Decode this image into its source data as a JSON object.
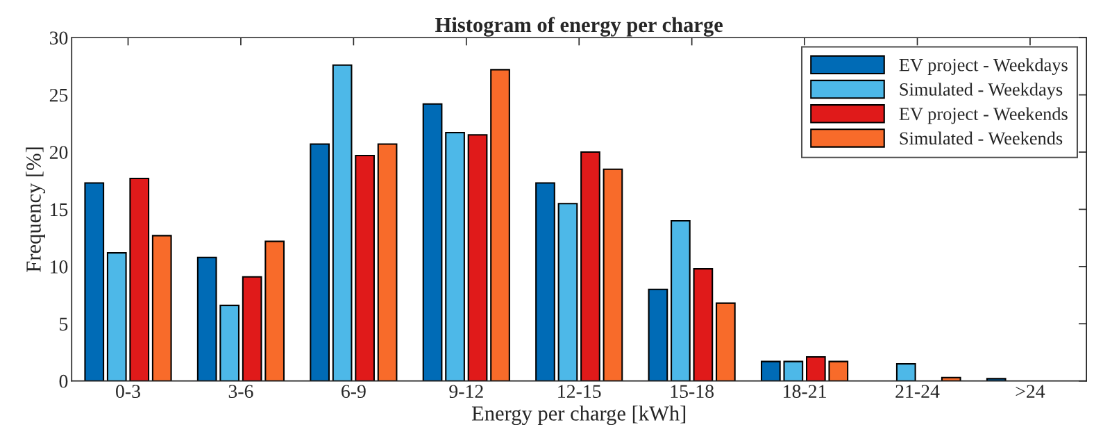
{
  "chart_data": {
    "type": "bar",
    "title": "Histogram of energy per charge",
    "xlabel": "Energy per charge [kWh]",
    "ylabel": "Frequency [%]",
    "categories": [
      "0-3",
      "3-6",
      "6-9",
      "9-12",
      "12-15",
      "15-18",
      "18-21",
      "21-24",
      ">24"
    ],
    "series": [
      {
        "name": "EV project - Weekdays",
        "color": "#006bb6",
        "values": [
          17.3,
          10.8,
          20.7,
          24.2,
          17.3,
          8.0,
          1.7,
          null,
          0.2
        ]
      },
      {
        "name": "Simulated - Weekdays",
        "color": "#4db8e8",
        "values": [
          11.2,
          6.6,
          27.6,
          21.7,
          15.5,
          14.0,
          1.7,
          1.5,
          null
        ]
      },
      {
        "name": "EV project - Weekends",
        "color": "#e01a1a",
        "values": [
          17.7,
          9.1,
          19.7,
          21.5,
          20.0,
          9.8,
          2.1,
          null,
          null
        ]
      },
      {
        "name": "Simulated - Weekends",
        "color": "#f86b2a",
        "values": [
          12.7,
          12.2,
          20.7,
          27.2,
          18.5,
          6.8,
          1.7,
          0.3,
          null
        ]
      }
    ],
    "ylim": [
      0,
      30
    ],
    "yticks": [
      0,
      5,
      10,
      15,
      20,
      25,
      30
    ],
    "legend": "top right",
    "grid": false
  }
}
